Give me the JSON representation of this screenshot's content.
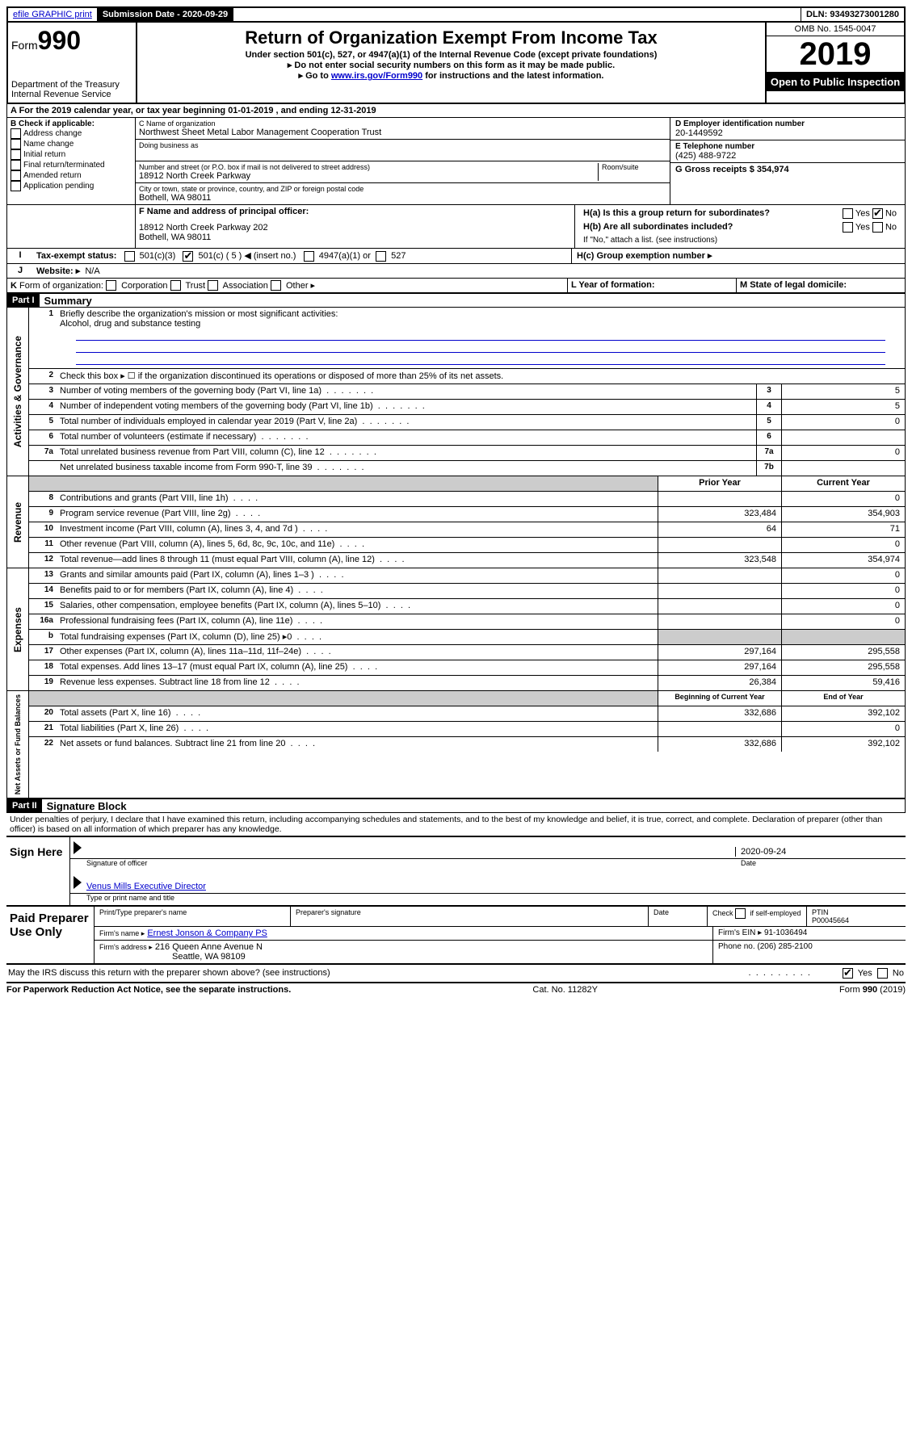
{
  "header": {
    "efile": "efile GRAPHIC print",
    "submission_label": "Submission Date - 2020-09-29",
    "dln": "DLN: 93493273001280"
  },
  "top": {
    "form_prefix": "Form",
    "form_number": "990",
    "dept": "Department of the Treasury",
    "irs": "Internal Revenue Service",
    "title": "Return of Organization Exempt From Income Tax",
    "subtitle": "Under section 501(c), 527, or 4947(a)(1) of the Internal Revenue Code (except private foundations)",
    "note1": "▸ Do not enter social security numbers on this form as it may be made public.",
    "note2_pre": "▸ Go to ",
    "note2_link": "www.irs.gov/Form990",
    "note2_post": " for instructions and the latest information.",
    "omb": "OMB No. 1545-0047",
    "year": "2019",
    "open": "Open to Public Inspection"
  },
  "period": "A For the 2019 calendar year, or tax year beginning 01-01-2019    , and ending 12-31-2019",
  "boxB": {
    "label": "B Check if applicable:",
    "opts": [
      "Address change",
      "Name change",
      "Initial return",
      "Final return/terminated",
      "Amended return",
      "Application pending"
    ]
  },
  "boxC": {
    "name_label": "C Name of organization",
    "name": "Northwest Sheet Metal Labor Management Cooperation Trust",
    "dba_label": "Doing business as",
    "addr_label": "Number and street (or P.O. box if mail is not delivered to street address)",
    "room_label": "Room/suite",
    "addr": "18912 North Creek Parkway",
    "city_label": "City or town, state or province, country, and ZIP or foreign postal code",
    "city": "Bothell, WA  98011"
  },
  "boxD": {
    "label": "D Employer identification number",
    "val": "20-1449592"
  },
  "boxE": {
    "label": "E Telephone number",
    "val": "(425) 488-9722"
  },
  "boxG": {
    "label": "G Gross receipts $ 354,974"
  },
  "boxF": {
    "label": "F  Name and address of principal officer:",
    "line1": "18912 North Creek Parkway 202",
    "line2": "Bothell, WA  98011"
  },
  "boxH": {
    "a": "H(a)  Is this a group return for subordinates?",
    "b": "H(b)  Are all subordinates included?",
    "b_note": "If \"No,\" attach a list. (see instructions)",
    "c": "H(c)  Group exemption number ▸"
  },
  "boxI": {
    "label": "Tax-exempt status:",
    "c3": "501(c)(3)",
    "c5": "501(c) ( 5 ) ◀ (insert no.)",
    "a1": "4947(a)(1) or",
    "s527": "527"
  },
  "boxJ": {
    "label": "Website: ▸",
    "val": "N/A"
  },
  "boxK": "K Form of organization:     Corporation     Trust     Association     Other ▸",
  "boxL": "L Year of formation:",
  "boxM": "M State of legal domicile:",
  "part1": {
    "header": "Part I",
    "title": "Summary",
    "sections": {
      "gov": "Activities & Governance",
      "rev": "Revenue",
      "exp": "Expenses",
      "net": "Net Assets or Fund Balances"
    },
    "q1": "Briefly describe the organization's mission or most significant activities:",
    "q1_ans": "Alcohol, drug and substance testing",
    "q2": "Check this box ▸ ☐  if the organization discontinued its operations or disposed of more than 25% of its net assets.",
    "lines": [
      {
        "n": "3",
        "desc": "Number of voting members of the governing body (Part VI, line 1a)",
        "box": "3",
        "v2": "5"
      },
      {
        "n": "4",
        "desc": "Number of independent voting members of the governing body (Part VI, line 1b)",
        "box": "4",
        "v2": "5"
      },
      {
        "n": "5",
        "desc": "Total number of individuals employed in calendar year 2019 (Part V, line 2a)",
        "box": "5",
        "v2": "0"
      },
      {
        "n": "6",
        "desc": "Total number of volunteers (estimate if necessary)",
        "box": "6",
        "v2": ""
      },
      {
        "n": "7a",
        "desc": "Total unrelated business revenue from Part VIII, column (C), line 12",
        "box": "7a",
        "v2": "0"
      },
      {
        "n": "",
        "desc": "Net unrelated business taxable income from Form 990-T, line 39",
        "box": "7b",
        "v2": ""
      }
    ],
    "col_h1": "Prior Year",
    "col_h2": "Current Year",
    "rev_lines": [
      {
        "n": "8",
        "desc": "Contributions and grants (Part VIII, line 1h)",
        "v1": "",
        "v2": "0"
      },
      {
        "n": "9",
        "desc": "Program service revenue (Part VIII, line 2g)",
        "v1": "323,484",
        "v2": "354,903"
      },
      {
        "n": "10",
        "desc": "Investment income (Part VIII, column (A), lines 3, 4, and 7d )",
        "v1": "64",
        "v2": "71"
      },
      {
        "n": "11",
        "desc": "Other revenue (Part VIII, column (A), lines 5, 6d, 8c, 9c, 10c, and 11e)",
        "v1": "",
        "v2": "0"
      },
      {
        "n": "12",
        "desc": "Total revenue—add lines 8 through 11 (must equal Part VIII, column (A), line 12)",
        "v1": "323,548",
        "v2": "354,974"
      }
    ],
    "exp_lines": [
      {
        "n": "13",
        "desc": "Grants and similar amounts paid (Part IX, column (A), lines 1–3 )",
        "v1": "",
        "v2": "0"
      },
      {
        "n": "14",
        "desc": "Benefits paid to or for members (Part IX, column (A), line 4)",
        "v1": "",
        "v2": "0"
      },
      {
        "n": "15",
        "desc": "Salaries, other compensation, employee benefits (Part IX, column (A), lines 5–10)",
        "v1": "",
        "v2": "0"
      },
      {
        "n": "16a",
        "desc": "Professional fundraising fees (Part IX, column (A), line 11e)",
        "v1": "",
        "v2": "0"
      },
      {
        "n": "b",
        "desc": "Total fundraising expenses (Part IX, column (D), line 25) ▸0",
        "v1": "shaded",
        "v2": "shaded"
      },
      {
        "n": "17",
        "desc": "Other expenses (Part IX, column (A), lines 11a–11d, 11f–24e)",
        "v1": "297,164",
        "v2": "295,558"
      },
      {
        "n": "18",
        "desc": "Total expenses. Add lines 13–17 (must equal Part IX, column (A), line 25)",
        "v1": "297,164",
        "v2": "295,558"
      },
      {
        "n": "19",
        "desc": "Revenue less expenses. Subtract line 18 from line 12",
        "v1": "26,384",
        "v2": "59,416"
      }
    ],
    "net_h1": "Beginning of Current Year",
    "net_h2": "End of Year",
    "net_lines": [
      {
        "n": "20",
        "desc": "Total assets (Part X, line 16)",
        "v1": "332,686",
        "v2": "392,102"
      },
      {
        "n": "21",
        "desc": "Total liabilities (Part X, line 26)",
        "v1": "",
        "v2": "0"
      },
      {
        "n": "22",
        "desc": "Net assets or fund balances. Subtract line 21 from line 20",
        "v1": "332,686",
        "v2": "392,102"
      }
    ]
  },
  "part2": {
    "header": "Part II",
    "title": "Signature Block",
    "decl": "Under penalties of perjury, I declare that I have examined this return, including accompanying schedules and statements, and to the best of my knowledge and belief, it is true, correct, and complete. Declaration of preparer (other than officer) is based on all information of which preparer has any knowledge."
  },
  "sign": {
    "label": "Sign Here",
    "sig_officer": "Signature of officer",
    "date": "2020-09-24",
    "date_label": "Date",
    "name": "Venus Mills  Executive Director",
    "name_label": "Type or print name and title"
  },
  "paid": {
    "label": "Paid Preparer Use Only",
    "h1": "Print/Type preparer's name",
    "h2": "Preparer's signature",
    "h3": "Date",
    "h4_a": "Check ☐ if self-employed",
    "h5": "PTIN",
    "ptin": "P00045664",
    "firm_name_l": "Firm's name    ▸",
    "firm_name": "Ernest Jonson & Company PS",
    "firm_ein_l": "Firm's EIN ▸",
    "firm_ein": "91-1036494",
    "firm_addr_l": "Firm's address ▸",
    "firm_addr1": "216 Queen Anne Avenue N",
    "firm_addr2": "Seattle, WA  98109",
    "phone_l": "Phone no.",
    "phone": "(206) 285-2100"
  },
  "discuss": "May the IRS discuss this return with the preparer shown above? (see instructions)",
  "footer": {
    "left": "For Paperwork Reduction Act Notice, see the separate instructions.",
    "mid": "Cat. No. 11282Y",
    "right": "Form 990 (2019)"
  }
}
